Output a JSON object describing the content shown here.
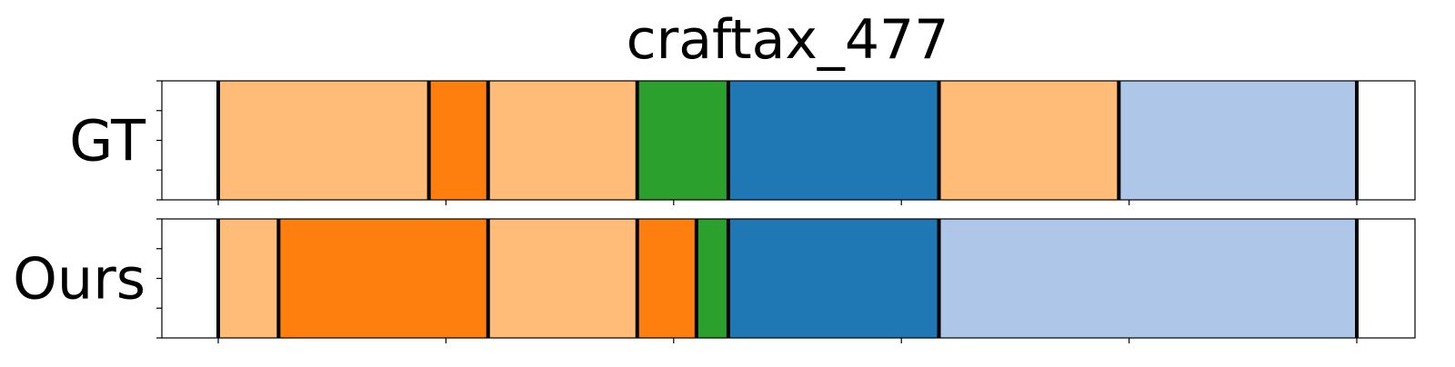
{
  "chart_data": {
    "type": "segmentation-timeline",
    "title": "craftax_477",
    "xlim": [
      0,
      100
    ],
    "x_ticks": [
      5,
      25,
      45,
      65,
      85,
      105
    ],
    "segment_colors": {
      "light-orange": "#ffbb78",
      "orange": "#ff7f0e",
      "green": "#2ca02c",
      "blue": "#1f77b4",
      "light-blue": "#aec7e8"
    },
    "boundary_color": "#000000",
    "rows": [
      {
        "label": "GT",
        "segments": [
          {
            "start": 5.0,
            "end": 23.5,
            "color": "light-orange"
          },
          {
            "start": 23.5,
            "end": 28.7,
            "color": "orange"
          },
          {
            "start": 28.7,
            "end": 41.8,
            "color": "light-orange"
          },
          {
            "start": 41.8,
            "end": 49.8,
            "color": "green"
          },
          {
            "start": 49.8,
            "end": 68.3,
            "color": "blue"
          },
          {
            "start": 68.3,
            "end": 84.1,
            "color": "light-orange"
          },
          {
            "start": 84.1,
            "end": 105.0,
            "color": "light-blue"
          }
        ]
      },
      {
        "label": "Ours",
        "segments": [
          {
            "start": 5.0,
            "end": 10.3,
            "color": "light-orange"
          },
          {
            "start": 10.3,
            "end": 28.7,
            "color": "orange"
          },
          {
            "start": 28.7,
            "end": 41.8,
            "color": "light-orange"
          },
          {
            "start": 41.8,
            "end": 47.0,
            "color": "orange"
          },
          {
            "start": 47.0,
            "end": 49.8,
            "color": "green"
          },
          {
            "start": 49.8,
            "end": 68.3,
            "color": "blue"
          },
          {
            "start": 68.3,
            "end": 105.0,
            "color": "light-blue"
          }
        ]
      }
    ],
    "grid": false,
    "legend": "none"
  }
}
